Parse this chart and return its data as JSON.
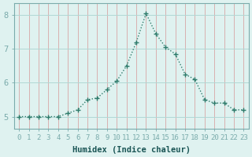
{
  "x": [
    0,
    1,
    2,
    3,
    4,
    5,
    6,
    7,
    8,
    9,
    10,
    11,
    12,
    13,
    14,
    15,
    16,
    17,
    18,
    19,
    20,
    21,
    22,
    23
  ],
  "y": [
    5.0,
    5.0,
    5.0,
    5.0,
    5.0,
    5.1,
    5.2,
    5.5,
    5.55,
    5.8,
    6.05,
    6.5,
    7.2,
    8.05,
    7.45,
    7.05,
    6.85,
    6.25,
    6.1,
    5.5,
    5.4,
    5.4,
    5.2,
    5.2
  ],
  "xlabel": "Humidex (Indice chaleur)",
  "ylim": [
    4.65,
    8.35
  ],
  "xlim": [
    -0.5,
    23.5
  ],
  "yticks": [
    5,
    6,
    7,
    8
  ],
  "xticks": [
    0,
    1,
    2,
    3,
    4,
    5,
    6,
    7,
    8,
    9,
    10,
    11,
    12,
    13,
    14,
    15,
    16,
    17,
    18,
    19,
    20,
    21,
    22,
    23
  ],
  "line_color": "#2d7a6a",
  "marker_color": "#2d7a6a",
  "bg_color": "#dff2f0",
  "hgrid_color": "#b0d8d5",
  "vgrid_color": "#d8b0b0",
  "spine_color": "#7aabab",
  "tick_label_color": "#2d6b6b",
  "xlabel_color": "#1a5555",
  "xlabel_fontsize": 7.5,
  "tick_fontsize": 6.5,
  "ytick_fontsize": 7.5
}
